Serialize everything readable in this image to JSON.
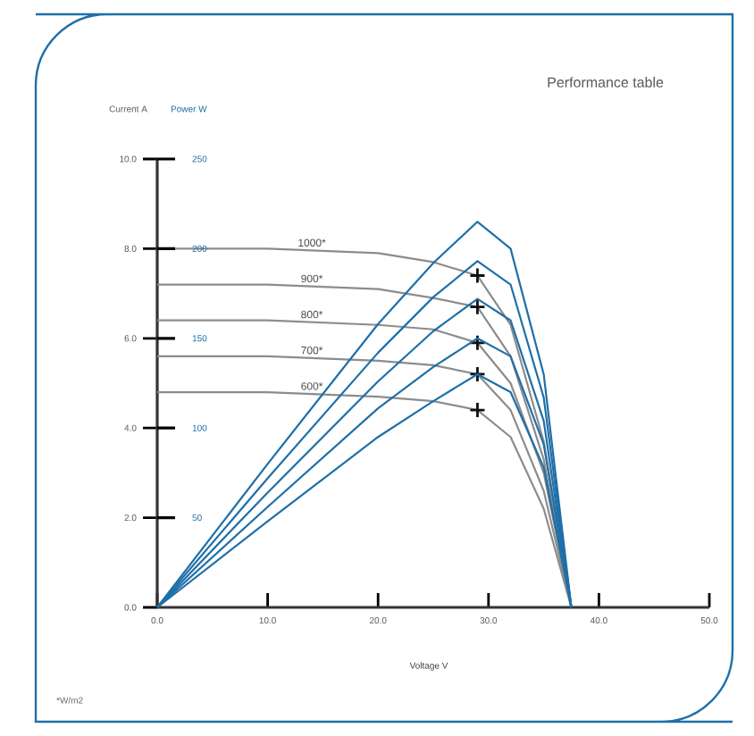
{
  "chart_data": {
    "type": "line",
    "title": "Performance table",
    "xlabel": "Voltage V",
    "ylabel": "Current A",
    "y2label": "Power W",
    "xlim": [
      0,
      50
    ],
    "xticks": [
      {
        "value": 0,
        "label": "0.0"
      },
      {
        "value": 10,
        "label": "10.0"
      },
      {
        "value": 20,
        "label": "20.0"
      },
      {
        "value": 30,
        "label": "30.0"
      },
      {
        "value": 40,
        "label": "40.0"
      },
      {
        "value": 50,
        "label": "50.0"
      }
    ],
    "ylim": [
      0,
      10
    ],
    "yticks": [
      {
        "value": 0,
        "label": "0.0"
      },
      {
        "value": 2,
        "label": "2.0"
      },
      {
        "value": 4,
        "label": "4.0"
      },
      {
        "value": 6,
        "label": "6.0"
      },
      {
        "value": 8,
        "label": "8.0"
      },
      {
        "value": 10,
        "label": "10.0"
      }
    ],
    "y2lim": [
      0,
      250
    ],
    "y2ticks": [
      50,
      100,
      150,
      200,
      250
    ],
    "annotations": [
      "*W/m2"
    ],
    "series": [
      {
        "axis": "y2",
        "color": "#1f6fa8",
        "x": [
          0,
          10,
          20,
          25,
          29,
          32,
          35,
          37.5
        ],
        "values": [
          0,
          80,
          158,
          192,
          215,
          200,
          130,
          0
        ]
      },
      {
        "axis": "y2",
        "color": "#1f6fa8",
        "x": [
          0,
          10,
          20,
          25,
          29,
          32,
          35,
          37.5
        ],
        "values": [
          0,
          72,
          142,
          173,
          193,
          180,
          117,
          0
        ]
      },
      {
        "axis": "y2",
        "color": "#1f6fa8",
        "x": [
          0,
          10,
          20,
          25,
          29,
          32,
          35,
          37.5
        ],
        "values": [
          0,
          64,
          126,
          154,
          172,
          160,
          104,
          0
        ]
      },
      {
        "axis": "y2",
        "color": "#1f6fa8",
        "x": [
          0,
          10,
          20,
          25,
          29,
          32,
          35,
          37.5
        ],
        "values": [
          0,
          56,
          111,
          134,
          150,
          140,
          91,
          0
        ]
      },
      {
        "axis": "y2",
        "color": "#1f6fa8",
        "x": [
          0,
          10,
          20,
          25,
          29,
          32,
          35,
          37.5
        ],
        "values": [
          0,
          48,
          95,
          115,
          130,
          120,
          78,
          0
        ]
      },
      {
        "name": "1000*",
        "color": "#8c8c8c",
        "x": [
          0,
          10,
          20,
          25,
          29,
          32,
          35,
          37.5
        ],
        "values": [
          8.0,
          8.0,
          7.9,
          7.7,
          7.4,
          6.3,
          3.7,
          0
        ]
      },
      {
        "name": "900*",
        "color": "#8c8c8c",
        "x": [
          0,
          10,
          20,
          25,
          29,
          32,
          35,
          37.5
        ],
        "values": [
          7.2,
          7.2,
          7.1,
          6.9,
          6.7,
          5.6,
          3.3,
          0
        ]
      },
      {
        "name": "800*",
        "color": "#8c8c8c",
        "x": [
          0,
          10,
          20,
          25,
          29,
          32,
          35,
          37.5
        ],
        "values": [
          6.4,
          6.4,
          6.3,
          6.2,
          5.9,
          5.0,
          3.0,
          0
        ]
      },
      {
        "name": "700*",
        "color": "#8c8c8c",
        "x": [
          0,
          10,
          20,
          25,
          29,
          32,
          35,
          37.5
        ],
        "values": [
          5.6,
          5.6,
          5.5,
          5.4,
          5.2,
          4.4,
          2.6,
          0
        ]
      },
      {
        "name": "600*",
        "color": "#8c8c8c",
        "x": [
          0,
          10,
          20,
          25,
          29,
          32,
          35,
          37.5
        ],
        "values": [
          4.8,
          4.8,
          4.7,
          4.6,
          4.4,
          3.8,
          2.2,
          0
        ]
      },
      {
        "type": "scatter",
        "marker": "cross",
        "color": "#111111",
        "x": [
          29,
          29,
          29,
          29,
          29
        ],
        "values": [
          7.4,
          6.7,
          5.9,
          5.2,
          4.4
        ]
      }
    ]
  }
}
